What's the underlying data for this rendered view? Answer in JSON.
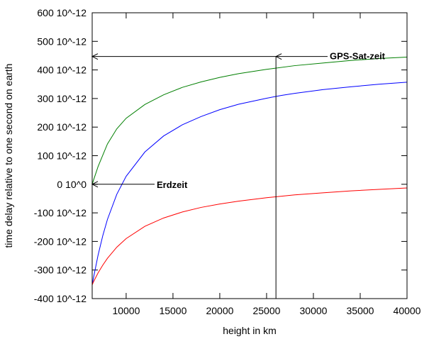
{
  "chart_data": {
    "type": "line",
    "title": "",
    "xlabel": "height in km",
    "ylabel": "time delay relative to one second on earth",
    "xlim": [
      6371,
      40000
    ],
    "ylim": [
      -400,
      600
    ],
    "x_ticks": [
      {
        "value": 10000,
        "label": "10000"
      },
      {
        "value": 15000,
        "label": "15000"
      },
      {
        "value": 20000,
        "label": "20000"
      },
      {
        "value": 25000,
        "label": "25000"
      },
      {
        "value": 30000,
        "label": "30000"
      },
      {
        "value": 35000,
        "label": "35000"
      },
      {
        "value": 40000,
        "label": "40000"
      }
    ],
    "y_ticks": [
      {
        "value": 600,
        "label": "600 10^-12"
      },
      {
        "value": 500,
        "label": "500 10^-12"
      },
      {
        "value": 400,
        "label": "400 10^-12"
      },
      {
        "value": 300,
        "label": "300 10^-12"
      },
      {
        "value": 200,
        "label": "200 10^-12"
      },
      {
        "value": 100,
        "label": "100 10^-12"
      },
      {
        "value": 0,
        "label": "0 10^0"
      },
      {
        "value": -100,
        "label": "-100 10^-12"
      },
      {
        "value": -200,
        "label": "-200 10^-12"
      },
      {
        "value": -300,
        "label": "-300 10^-12"
      },
      {
        "value": -400,
        "label": "-400 10^-12"
      }
    ],
    "grid": false,
    "series": [
      {
        "color": "#007f00",
        "x": [
          6371,
          6500,
          7000,
          8000,
          9000,
          10000,
          12000,
          14000,
          16000,
          18000,
          20000,
          22000,
          25000,
          28000,
          31000,
          34000,
          37000,
          40000
        ],
        "values": [
          0,
          13,
          62,
          141,
          194,
          231,
          279,
          313,
          339,
          358,
          374,
          387,
          402,
          415,
          424,
          433,
          440,
          445
        ]
      },
      {
        "color": "#0000ff",
        "x": [
          6371,
          6500,
          7000,
          7500,
          8000,
          9000,
          10000,
          12000,
          14000,
          16000,
          18000,
          20000,
          22000,
          25000,
          26600,
          28000,
          31000,
          34000,
          37000,
          40000
        ],
        "values": [
          -352,
          -329,
          -248,
          -180,
          -123,
          -35,
          28,
          113,
          169,
          208,
          237,
          261,
          280,
          301,
          311,
          318,
          331,
          341,
          350,
          357
        ]
      },
      {
        "color": "#ff0000",
        "x": [
          6371,
          6500,
          7000,
          7500,
          8000,
          9000,
          10000,
          12000,
          14000,
          16000,
          18000,
          20000,
          22000,
          25000,
          28000,
          31000,
          34000,
          37000,
          40000
        ],
        "values": [
          -352,
          -342,
          -310,
          -283,
          -259,
          -220,
          -190,
          -147,
          -118,
          -97,
          -81,
          -69,
          -59,
          -47,
          -37,
          -30,
          -23,
          -18,
          -13
        ]
      }
    ],
    "annotations": [
      {
        "text": "GPS-Sat-zeit",
        "x": 26000,
        "y": 447
      },
      {
        "text": "Erdzeit",
        "x": 6371,
        "y": 0
      }
    ]
  }
}
